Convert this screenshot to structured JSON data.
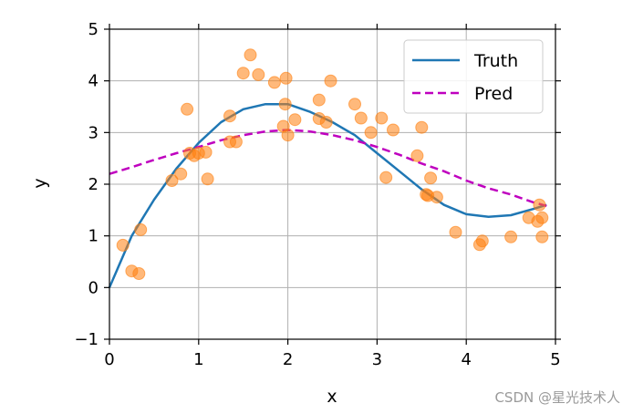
{
  "chart_data": {
    "type": "scatter",
    "title": "",
    "xlabel": "x",
    "ylabel": "y",
    "xlim": [
      0,
      5
    ],
    "ylim": [
      -1,
      5
    ],
    "xticks": [
      0,
      1,
      2,
      3,
      4,
      5
    ],
    "yticks": [
      -1,
      0,
      1,
      2,
      3,
      4,
      5
    ],
    "xtick_labels": [
      "0",
      "1",
      "2",
      "3",
      "4",
      "5"
    ],
    "ytick_labels": [
      "−1",
      "0",
      "1",
      "2",
      "3",
      "4",
      "5"
    ],
    "grid": true,
    "legend_position": "top-right",
    "series": [
      {
        "name": "Truth",
        "kind": "line",
        "color": "#1f77b4",
        "style": "solid",
        "x": [
          0.0,
          0.25,
          0.5,
          0.75,
          1.0,
          1.25,
          1.5,
          1.75,
          2.0,
          2.25,
          2.5,
          2.75,
          3.0,
          3.25,
          3.5,
          3.75,
          4.0,
          4.25,
          4.5,
          4.75,
          4.9
        ],
        "y": [
          0.0,
          1.0,
          1.7,
          2.3,
          2.8,
          3.2,
          3.45,
          3.55,
          3.55,
          3.4,
          3.2,
          2.95,
          2.6,
          2.25,
          1.9,
          1.6,
          1.42,
          1.37,
          1.4,
          1.52,
          1.6
        ]
      },
      {
        "name": "Pred",
        "kind": "line",
        "color": "#bf00bf",
        "style": "dashed",
        "x": [
          0.0,
          0.25,
          0.5,
          0.75,
          1.0,
          1.25,
          1.5,
          1.75,
          2.0,
          2.25,
          2.5,
          2.75,
          3.0,
          3.25,
          3.5,
          3.75,
          4.0,
          4.25,
          4.5,
          4.75,
          4.9
        ],
        "y": [
          2.2,
          2.33,
          2.47,
          2.6,
          2.72,
          2.85,
          2.95,
          3.02,
          3.05,
          3.02,
          2.95,
          2.85,
          2.72,
          2.57,
          2.4,
          2.25,
          2.07,
          1.92,
          1.8,
          1.65,
          1.58
        ]
      },
      {
        "name": "",
        "kind": "scatter",
        "color": "#ff7f0e",
        "x": [
          0.15,
          0.25,
          0.33,
          0.35,
          0.7,
          0.8,
          0.87,
          0.9,
          0.95,
          1.0,
          1.08,
          1.1,
          1.35,
          1.35,
          1.42,
          1.5,
          1.58,
          1.67,
          1.85,
          1.95,
          1.97,
          1.98,
          2.0,
          2.08,
          2.35,
          2.35,
          2.43,
          2.48,
          2.75,
          2.82,
          2.93,
          3.05,
          3.1,
          3.18,
          3.45,
          3.5,
          3.55,
          3.57,
          3.6,
          3.67,
          3.88,
          4.15,
          4.18,
          4.5,
          4.7,
          4.8,
          4.82,
          4.85,
          4.85
        ],
        "y": [
          0.82,
          0.32,
          0.27,
          1.12,
          2.07,
          2.2,
          3.45,
          2.6,
          2.55,
          2.6,
          2.62,
          2.1,
          3.32,
          2.82,
          2.82,
          4.15,
          4.5,
          4.12,
          3.97,
          3.12,
          3.55,
          4.05,
          2.95,
          3.25,
          3.63,
          3.27,
          3.2,
          4.0,
          3.55,
          3.28,
          3.0,
          3.28,
          2.13,
          3.05,
          2.55,
          3.1,
          1.8,
          1.78,
          2.12,
          1.75,
          1.07,
          0.83,
          0.9,
          0.98,
          1.35,
          1.28,
          1.6,
          1.35,
          0.98
        ]
      }
    ]
  },
  "watermark": "CSDN @星光技术人"
}
